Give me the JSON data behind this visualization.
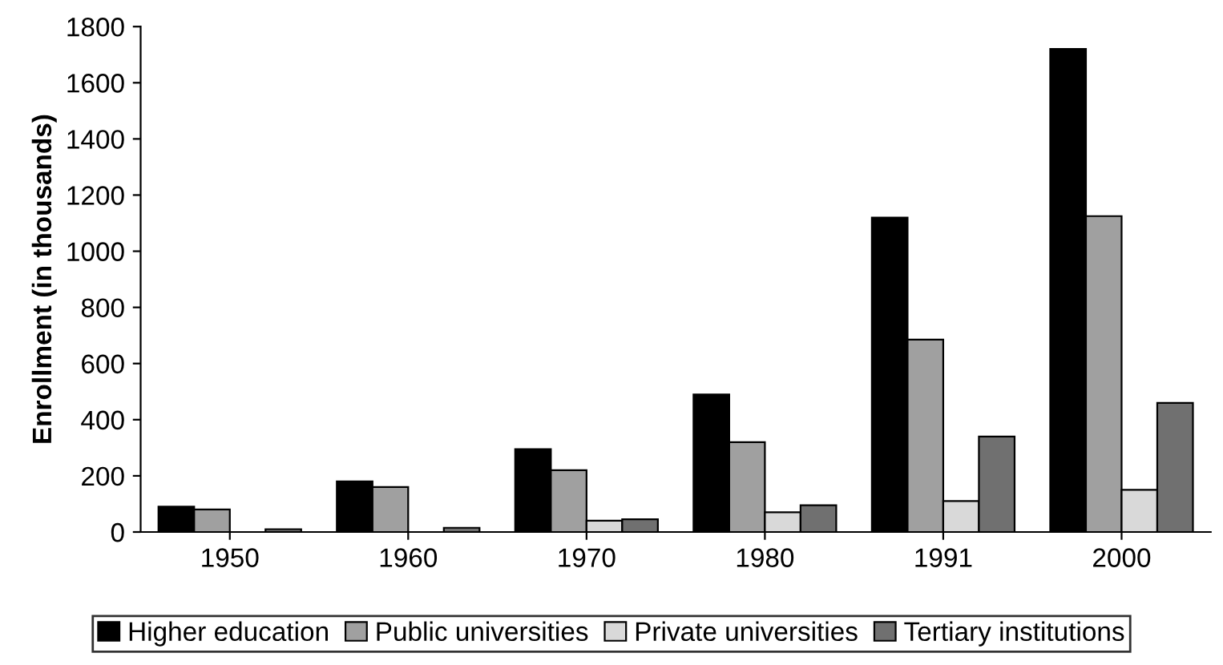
{
  "chart_data": {
    "type": "bar",
    "ylabel": "Enrollment (in thousands)",
    "categories": [
      "1950",
      "1960",
      "1970",
      "1980",
      "1991",
      "2000"
    ],
    "series": [
      {
        "name": "Higher education",
        "color": "#000000",
        "values": [
          90,
          180,
          295,
          490,
          1120,
          1720
        ]
      },
      {
        "name": "Public universities",
        "color": "#a0a0a0",
        "values": [
          80,
          160,
          220,
          320,
          685,
          1125
        ]
      },
      {
        "name": "Private universities",
        "color": "#d9d9d9",
        "values": [
          null,
          null,
          40,
          70,
          110,
          150
        ]
      },
      {
        "name": "Tertiary institutions",
        "color": "#707070",
        "values": [
          10,
          15,
          45,
          95,
          340,
          460
        ]
      }
    ],
    "ylim": [
      0,
      1800
    ],
    "yticks": [
      0,
      200,
      400,
      600,
      800,
      1000,
      1200,
      1400,
      1600,
      1800
    ],
    "grid": false,
    "legend": "bottom"
  }
}
